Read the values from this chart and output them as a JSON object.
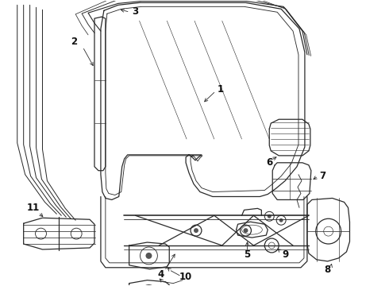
{
  "bg_color": "#ffffff",
  "line_color": "#2a2a2a",
  "label_color": "#111111",
  "figsize": [
    4.9,
    3.6
  ],
  "dpi": 100
}
